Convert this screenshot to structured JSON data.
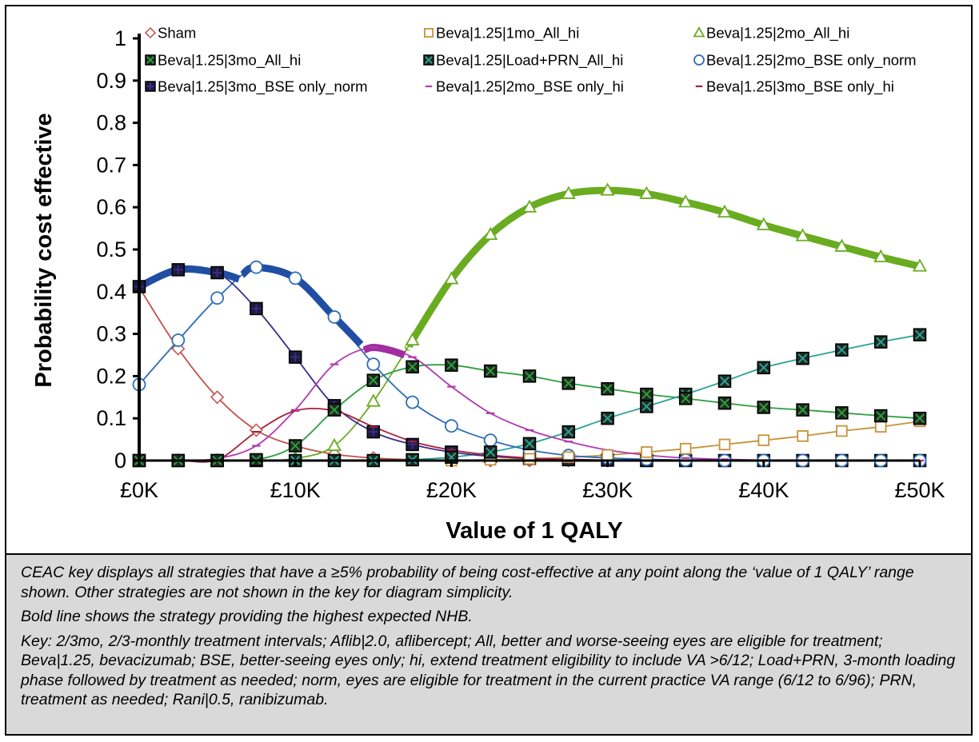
{
  "chart_data": {
    "type": "line",
    "xlabel": "Value of 1 QALY",
    "ylabel": "Probability cost effective",
    "xlim": [
      0,
      50
    ],
    "ylim": [
      0,
      1
    ],
    "x_ticks": [
      "£0K",
      "£10K",
      "£20K",
      "£30K",
      "£40K",
      "£50K"
    ],
    "y_ticks": [
      "0",
      "0.1",
      "0.2",
      "0.3",
      "0.4",
      "0.5",
      "0.6",
      "0.7",
      "0.8",
      "0.9",
      "1"
    ],
    "legend_position": "top",
    "x": [
      0,
      2.5,
      5,
      7.5,
      10,
      12.5,
      15,
      17.5,
      20,
      22.5,
      25,
      27.5,
      30,
      32.5,
      35,
      37.5,
      40,
      42.5,
      45,
      47.5,
      50
    ],
    "series": [
      {
        "name": "Sham",
        "color": "#c0504d",
        "marker": "diamond-open",
        "values": [
          0.41,
          0.265,
          0.15,
          0.072,
          0.035,
          0.015,
          0.006,
          0.002,
          0.001,
          0,
          0,
          0,
          0,
          0,
          0,
          0,
          0,
          0,
          0,
          0,
          0
        ]
      },
      {
        "name": "Beva|1.25|1mo_All_hi",
        "color": "#c8923b",
        "marker": "square-open",
        "values": [
          0,
          0,
          0,
          0,
          0,
          0,
          0,
          0,
          0,
          0.002,
          0.004,
          0.008,
          0.013,
          0.02,
          0.028,
          0.038,
          0.048,
          0.058,
          0.07,
          0.08,
          0.093
        ]
      },
      {
        "name": "Beva|1.25|2mo_All_hi",
        "color": "#6aac20",
        "marker": "triangle-open",
        "values": [
          0,
          0,
          0,
          0,
          0.005,
          0.035,
          0.14,
          0.285,
          0.43,
          0.535,
          0.6,
          0.632,
          0.64,
          0.632,
          0.612,
          0.588,
          0.558,
          0.532,
          0.507,
          0.482,
          0.46
        ]
      },
      {
        "name": "Beva|1.25|3mo_All_hi",
        "color": "#2e9e3e",
        "marker": "square-x-dark",
        "values": [
          0,
          0,
          0,
          0.002,
          0.035,
          0.12,
          0.19,
          0.222,
          0.226,
          0.212,
          0.2,
          0.183,
          0.17,
          0.157,
          0.147,
          0.136,
          0.126,
          0.12,
          0.113,
          0.106,
          0.1
        ]
      },
      {
        "name": "Beva|1.25|Load+PRN_All_hi",
        "color": "#2aa198",
        "marker": "square-x-dark",
        "values": [
          0,
          0,
          0,
          0,
          0,
          0,
          0,
          0.002,
          0.008,
          0.02,
          0.04,
          0.068,
          0.1,
          0.128,
          0.157,
          0.188,
          0.22,
          0.242,
          0.262,
          0.281,
          0.298
        ]
      },
      {
        "name": "Beva|1.25|2mo_BSE only_norm",
        "color": "#2e6db4",
        "marker": "circle-open",
        "values": [
          0.18,
          0.285,
          0.385,
          0.458,
          0.432,
          0.34,
          0.228,
          0.138,
          0.082,
          0.048,
          0.025,
          0.012,
          0.006,
          0.003,
          0.001,
          0,
          0,
          0,
          0,
          0,
          0
        ]
      },
      {
        "name": "Beva|1.25|3mo_BSE only_norm",
        "color": "#3d2a8c",
        "marker": "square-plus-dark",
        "values": [
          0.412,
          0.452,
          0.445,
          0.36,
          0.245,
          0.13,
          0.068,
          0.038,
          0.02,
          0.01,
          0.005,
          0.002,
          0.001,
          0,
          0,
          0,
          0,
          0,
          0,
          0,
          0
        ]
      },
      {
        "name": "Beva|1.25|2mo_BSE only_hi",
        "color": "#b23ab2",
        "marker": "dash",
        "values": [
          0,
          0,
          0.005,
          0.035,
          0.12,
          0.228,
          0.268,
          0.245,
          0.175,
          0.112,
          0.072,
          0.045,
          0.025,
          0.013,
          0.006,
          0.003,
          0.001,
          0,
          0,
          0,
          0
        ]
      },
      {
        "name": "Beva|1.25|3mo_BSE only_hi",
        "color": "#a6203a",
        "marker": "dash",
        "values": [
          0,
          0,
          0.002,
          0.068,
          0.118,
          0.118,
          0.08,
          0.045,
          0.025,
          0.013,
          0.006,
          0.003,
          0.001,
          0,
          0,
          0,
          0,
          0,
          0,
          0,
          0
        ]
      }
    ],
    "optimal_path": [
      {
        "color": "#1f4ea3",
        "points": [
          [
            0,
            0.412
          ],
          [
            2.5,
            0.452
          ],
          [
            5,
            0.445
          ],
          [
            6.4,
            0.43
          ]
        ]
      },
      {
        "color": "#1f4ea3",
        "points": [
          [
            6.6,
            0.44
          ],
          [
            7.5,
            0.458
          ],
          [
            10,
            0.432
          ],
          [
            12.5,
            0.34
          ],
          [
            14.2,
            0.275
          ]
        ]
      },
      {
        "color": "#a02ea0",
        "points": [
          [
            14.4,
            0.262
          ],
          [
            15,
            0.268
          ],
          [
            16,
            0.262
          ],
          [
            17,
            0.25
          ]
        ]
      },
      {
        "color": "#6aac20",
        "points": [
          [
            17.3,
            0.27
          ],
          [
            17.5,
            0.285
          ],
          [
            20,
            0.43
          ],
          [
            22.5,
            0.535
          ],
          [
            25,
            0.6
          ],
          [
            27.5,
            0.632
          ],
          [
            30,
            0.64
          ],
          [
            32.5,
            0.632
          ],
          [
            35,
            0.612
          ],
          [
            37.5,
            0.588
          ],
          [
            40,
            0.558
          ],
          [
            42.5,
            0.532
          ],
          [
            45,
            0.507
          ],
          [
            47.5,
            0.482
          ],
          [
            50,
            0.46
          ]
        ]
      }
    ]
  },
  "notes": [
    "CEAC key displays all strategies that have a ≥5% probability of being cost-effective at any point along the ‘value of 1 QALY’ range shown. Other strategies are not shown in the key for diagram simplicity.",
    "Bold line shows the strategy providing the highest expected NHB.",
    "Key: 2/3mo, 2/3-monthly treatment intervals; Aflib|2.0, aflibercept; All, better and worse-seeing eyes are eligible for treatment; Beva|1.25, bevacizumab; BSE, better-seeing eyes only; hi, extend treatment eligibility to include VA >6/12; Load+PRN, 3-month loading phase followed by treatment as needed; norm, eyes are eligible for treatment in the current practice VA range (6/12 to 6/96); PRN, treatment as needed; Rani|0.5, ranibizumab."
  ]
}
